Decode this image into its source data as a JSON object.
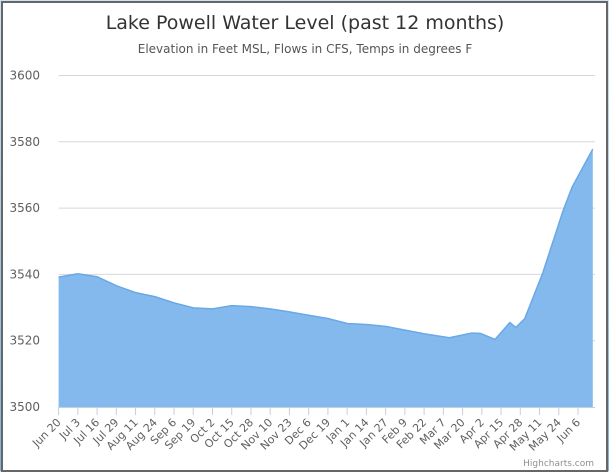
{
  "chart_data": {
    "type": "area",
    "title": "Lake Powell Water Level (past 12 months)",
    "subtitle": "Elevation in Feet MSL, Flows in CFS, Temps in degrees F",
    "xlabel": "",
    "ylabel": "",
    "ylim": [
      3500,
      3600
    ],
    "yticks": [
      "3500",
      "3520",
      "3540",
      "3560",
      "3580",
      "3600"
    ],
    "xticks": [
      "Jun 20",
      "Jul 3",
      "Jul 16",
      "Jul 29",
      "Aug 11",
      "Aug 24",
      "Sep 6",
      "Sep 19",
      "Oct 2",
      "Oct 15",
      "Oct 28",
      "Nov 10",
      "Nov 23",
      "Dec 6",
      "Dec 19",
      "Jan 1",
      "Jan 14",
      "Jan 27",
      "Feb 9",
      "Feb 22",
      "Mar 7",
      "Mar 20",
      "Apr 2",
      "Apr 15",
      "Apr 28",
      "May 11",
      "May 24",
      "Jun 6"
    ],
    "grid": true,
    "legend": "none",
    "color": "#7cb5ec",
    "series": [
      {
        "x": [
          "Jun 20",
          "Jul 3",
          "Jul 16",
          "Jul 29",
          "Aug 11",
          "Aug 24",
          "Sep 6",
          "Sep 19",
          "Oct 2",
          "Oct 15",
          "Oct 28",
          "Nov 10",
          "Nov 23",
          "Dec 6",
          "Dec 19",
          "Jan 1",
          "Jan 14",
          "Jan 27",
          "Feb 9",
          "Feb 22",
          "Mar 11",
          "Mar 26",
          "Apr 1",
          "Apr 11",
          "Apr 21",
          "Apr 25",
          "May 1",
          "May 13",
          "May 27",
          "Jun 2",
          "Jun 16"
        ],
        "values": [
          3539.2,
          3540.2,
          3539.3,
          3536.6,
          3534.5,
          3533.3,
          3531.4,
          3529.9,
          3529.6,
          3530.6,
          3530.3,
          3529.6,
          3528.7,
          3527.7,
          3526.7,
          3525.2,
          3524.9,
          3524.3,
          3523.2,
          3522.1,
          3520.9,
          3522.3,
          3522.2,
          3520.4,
          3525.5,
          3524.0,
          3526.6,
          3540.2,
          3559.3,
          3566.3,
          3577.8
        ]
      }
    ],
    "credit": "Highcharts.com"
  }
}
